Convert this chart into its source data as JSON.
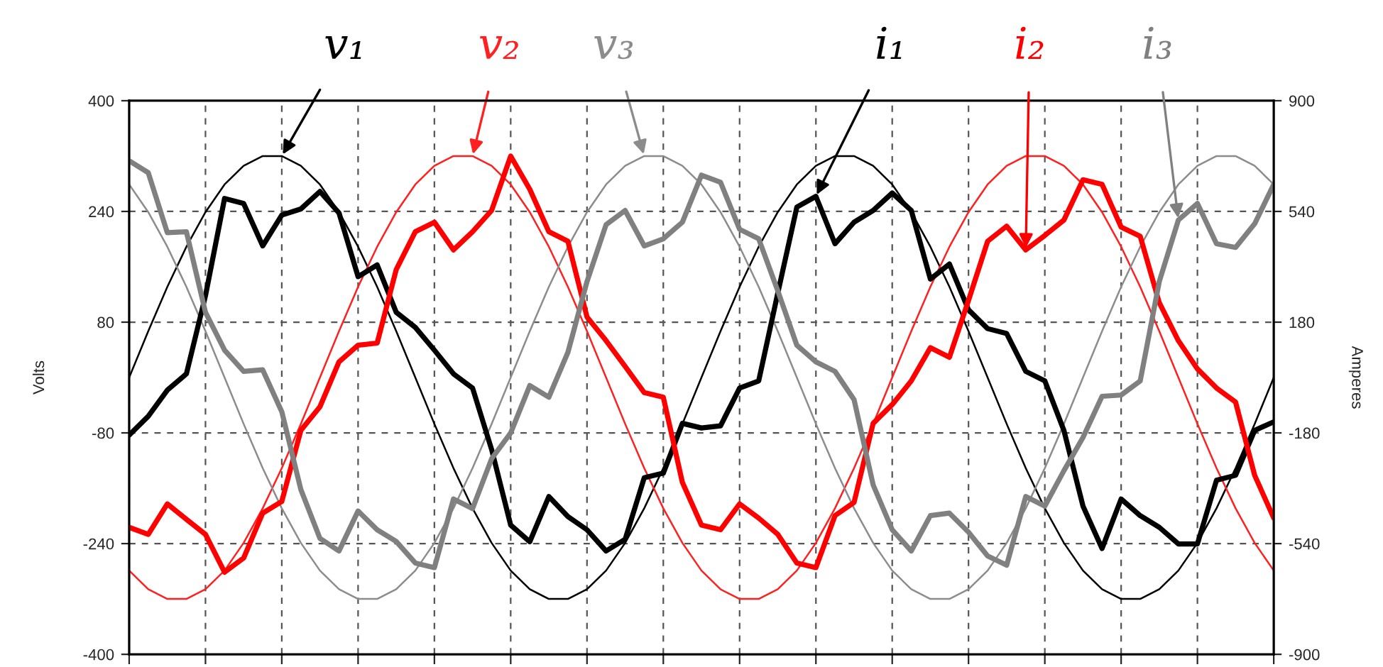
{
  "chart_data": {
    "type": "line",
    "ylabel": "Volts",
    "y2label": "Amperes",
    "categories": [
      null,
      null,
      null,
      null,
      null,
      null,
      null,
      null,
      null,
      null,
      null,
      null,
      null,
      null,
      null,
      null,
      null,
      null,
      null,
      null,
      null,
      null,
      null,
      null,
      null,
      null,
      null,
      null,
      null,
      null,
      null,
      null,
      null,
      null,
      null,
      null,
      null,
      null,
      null,
      null,
      null,
      null,
      null,
      null,
      null,
      null,
      null,
      null,
      null,
      null,
      null,
      null,
      null,
      null,
      null,
      null,
      null,
      null,
      null,
      null,
      null
    ],
    "ylim": [
      -400,
      400
    ],
    "yticks": [
      -400,
      -240,
      -80,
      80,
      240,
      400
    ],
    "y2lim": [
      -900,
      900
    ],
    "y2ticks": [
      -900,
      -540,
      -180,
      180,
      540,
      900
    ],
    "grid": true,
    "tick_labels": "y",
    "series": [
      {
        "name": "v₁",
        "color": "#000000",
        "values": [
          0,
          67,
          131,
          189,
          239,
          279,
          306,
          320,
          320,
          306,
          279,
          239,
          189,
          131,
          67,
          0,
          -67,
          -131,
          -189,
          -239,
          -279,
          -306,
          -320,
          -320,
          -306,
          -279,
          -239,
          -189,
          -131,
          -67,
          0,
          67,
          131,
          189,
          239,
          279,
          306,
          320,
          320,
          306,
          279,
          239,
          189,
          131,
          67,
          0,
          -67,
          -131,
          -189,
          -239,
          -279,
          -306,
          -320,
          -320,
          -306,
          -279,
          -239,
          -189,
          -131,
          -67,
          0
        ]
      },
      {
        "name": "v₂",
        "color": "#ff2020",
        "values": [
          -279,
          -306,
          -320,
          -320,
          -306,
          -279,
          -239,
          -189,
          -131,
          -67,
          0,
          67,
          131,
          189,
          239,
          279,
          306,
          320,
          320,
          306,
          279,
          239,
          189,
          131,
          67,
          0,
          -67,
          -131,
          -189,
          -239,
          -279,
          -306,
          -320,
          -320,
          -306,
          -279,
          -239,
          -189,
          -131,
          -67,
          0,
          67,
          131,
          189,
          239,
          279,
          306,
          320,
          320,
          306,
          279,
          239,
          189,
          131,
          67,
          0,
          -67,
          -131,
          -189,
          -239,
          -279
        ]
      },
      {
        "name": "v₃",
        "color": "#8c8c8c",
        "values": [
          279,
          239,
          189,
          131,
          67,
          0,
          -67,
          -131,
          -189,
          -239,
          -279,
          -306,
          -320,
          -320,
          -306,
          -279,
          -239,
          -189,
          -131,
          -67,
          0,
          67,
          131,
          189,
          239,
          279,
          306,
          320,
          320,
          306,
          279,
          239,
          189,
          131,
          67,
          0,
          -67,
          -131,
          -189,
          -239,
          -279,
          -306,
          -320,
          -320,
          -306,
          -279,
          -239,
          -189,
          -131,
          -67,
          0,
          67,
          131,
          189,
          239,
          279,
          306,
          320,
          320,
          306,
          279
        ]
      },
      {
        "name": "i₁",
        "color": "#000000",
        "axis": "y2",
        "values": [
          -187,
          -126,
          -41,
          12,
          266,
          582,
          566,
          428,
          528,
          548,
          605,
          535,
          328,
          366,
          212,
          163,
          89,
          12,
          -34,
          -234,
          -480,
          -534,
          -387,
          -452,
          -495,
          -564,
          -526,
          -326,
          -311,
          -149,
          -164,
          -157,
          -34,
          -11,
          274,
          554,
          589,
          435,
          505,
          543,
          600,
          543,
          320,
          369,
          220,
          159,
          143,
          20,
          -11,
          -172,
          -418,
          -556,
          -395,
          -449,
          -487,
          -541,
          -541,
          -334,
          -318,
          -172,
          -144
        ]
      },
      {
        "name": "i₂",
        "color": "#ff0000",
        "axis": "y2",
        "values": [
          -487,
          -510,
          -411,
          -461,
          -510,
          -633,
          -587,
          -441,
          -403,
          -172,
          -95,
          51,
          105,
          112,
          351,
          474,
          505,
          415,
          474,
          543,
          720,
          612,
          474,
          443,
          197,
          120,
          36,
          -49,
          -64,
          -341,
          -480,
          -495,
          -411,
          -457,
          -510,
          -603,
          -618,
          -449,
          -406,
          -149,
          -88,
          -11,
          97,
          66,
          251,
          443,
          492,
          415,
          462,
          512,
          643,
          628,
          489,
          459,
          243,
          120,
          28,
          -34,
          -80,
          -318,
          -457
        ]
      },
      {
        "name": "i₃",
        "color": "#808080",
        "axis": "y2",
        "values": [
          705,
          666,
          471,
          474,
          212,
          89,
          20,
          25,
          -111,
          -364,
          -523,
          -564,
          -434,
          -495,
          -533,
          -603,
          -618,
          -395,
          -426,
          -264,
          -180,
          -26,
          -64,
          82,
          312,
          497,
          543,
          428,
          451,
          505,
          658,
          635,
          482,
          451,
          282,
          105,
          51,
          20,
          -72,
          -349,
          -495,
          -564,
          -449,
          -441,
          -503,
          -580,
          -610,
          -387,
          -418,
          -303,
          -195,
          -61,
          -57,
          -11,
          312,
          512,
          566,
          435,
          423,
          500,
          628
        ]
      }
    ]
  }
}
